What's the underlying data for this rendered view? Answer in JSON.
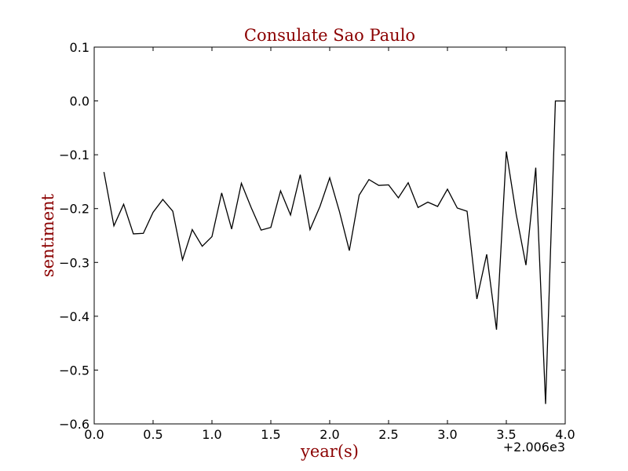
{
  "chart_data": {
    "type": "line",
    "title": "Consulate Sao Paulo",
    "xlabel": "year(s)",
    "ylabel": "sentiment",
    "x_offset_label": "+2.006e3",
    "xlim": [
      0.0,
      4.0
    ],
    "ylim": [
      -0.6,
      0.1
    ],
    "xticks": [
      0.0,
      0.5,
      1.0,
      1.5,
      2.0,
      2.5,
      3.0,
      3.5,
      4.0
    ],
    "xtick_labels": [
      "0.0",
      "0.5",
      "1.0",
      "1.5",
      "2.0",
      "2.5",
      "3.0",
      "3.5",
      "4.0"
    ],
    "yticks": [
      0.1,
      0.0,
      -0.1,
      -0.2,
      -0.3,
      -0.4,
      -0.5,
      -0.6
    ],
    "ytick_labels": [
      "0.1",
      "0.0",
      "−0.1",
      "−0.2",
      "−0.3",
      "−0.4",
      "−0.5",
      "−0.6"
    ],
    "grid": false,
    "legend": "none",
    "colors": {
      "line": "#000000",
      "title": "#8b0000",
      "axis_title": "#8b0000"
    },
    "series": [
      {
        "x": [
          0.083,
          0.167,
          0.25,
          0.333,
          0.417,
          0.5,
          0.583,
          0.667,
          0.75,
          0.833,
          0.917,
          1.0,
          1.083,
          1.167,
          1.25,
          1.333,
          1.417,
          1.5,
          1.583,
          1.667,
          1.75,
          1.833,
          1.917,
          2.0,
          2.083,
          2.167,
          2.25,
          2.333,
          2.417,
          2.5,
          2.583,
          2.667,
          2.75,
          2.833,
          2.917,
          3.0,
          3.083,
          3.167,
          3.25,
          3.333,
          3.417,
          3.5,
          3.583,
          3.667,
          3.75,
          3.833,
          3.917,
          4.0
        ],
        "y": [
          -0.132,
          -0.232,
          -0.192,
          -0.247,
          -0.246,
          -0.207,
          -0.183,
          -0.205,
          -0.295,
          -0.239,
          -0.27,
          -0.252,
          -0.171,
          -0.238,
          -0.153,
          -0.198,
          -0.24,
          -0.235,
          -0.167,
          -0.212,
          -0.137,
          -0.239,
          -0.196,
          -0.143,
          -0.206,
          -0.278,
          -0.175,
          -0.146,
          -0.157,
          -0.156,
          -0.18,
          -0.152,
          -0.198,
          -0.188,
          -0.196,
          -0.164,
          -0.199,
          -0.205,
          -0.368,
          -0.285,
          -0.425,
          -0.094,
          -0.21,
          -0.305,
          -0.124,
          -0.563,
          0.0,
          0.0
        ]
      }
    ]
  }
}
